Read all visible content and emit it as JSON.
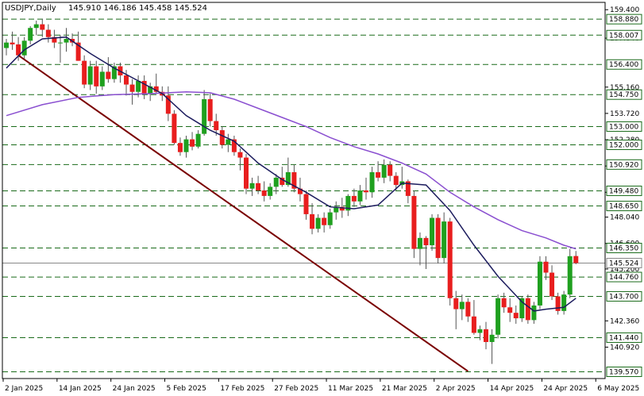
{
  "header": {
    "symbol": "USDJPY,Daily",
    "ohlc": "145.910 146.186 145.458 145.524"
  },
  "colors": {
    "background": "#ffffff",
    "bull": "#1fa01f",
    "bear": "#e81e1e",
    "wick": "#555555",
    "ma_fast": "#1c1c5e",
    "ma_slow": "#8a4fd0",
    "trendline": "#7a0000",
    "levels": "#1a6b1a",
    "price_line": "#888888",
    "grid_border": "#000000"
  },
  "chart_data": {
    "type": "candlestick",
    "timeframe": "Daily",
    "symbol": "USDJPY",
    "ylim": [
      139.2,
      159.8
    ],
    "price_ticks": [
      159.4,
      157.84,
      155.16,
      153.72,
      152.28,
      150.84,
      149.4,
      148.04,
      146.6,
      145.2,
      142.36,
      140.92
    ],
    "x_tick_labels": [
      "2 Jan 2025",
      "14 Jan 2025",
      "24 Jan 2025",
      "5 Feb 2025",
      "17 Feb 2025",
      "27 Feb 2025",
      "11 Mar 2025",
      "21 Mar 2025",
      "2 Apr 2025",
      "14 Apr 2025",
      "24 Apr 2025",
      "6 May 2025"
    ],
    "horizontal_levels": [
      158.88,
      158.007,
      156.4,
      154.75,
      153.0,
      152.0,
      150.92,
      149.48,
      148.65,
      146.35,
      144.76,
      143.7,
      141.44,
      139.57
    ],
    "current_price": 145.524,
    "candles": [
      [
        157.3,
        157.8,
        156.9,
        157.6
      ],
      [
        157.6,
        158.2,
        157.2,
        157.5
      ],
      [
        157.5,
        157.9,
        156.6,
        156.9
      ],
      [
        156.9,
        157.9,
        156.7,
        157.7
      ],
      [
        157.7,
        158.5,
        157.5,
        158.4
      ],
      [
        158.4,
        158.8,
        158.0,
        158.6
      ],
      [
        158.6,
        158.9,
        157.9,
        158.3
      ],
      [
        158.3,
        158.6,
        157.6,
        157.9
      ],
      [
        157.9,
        158.3,
        157.3,
        157.6
      ],
      [
        157.6,
        158.0,
        156.5,
        157.6
      ],
      [
        157.6,
        158.4,
        157.1,
        157.8
      ],
      [
        157.8,
        158.1,
        157.4,
        157.6
      ],
      [
        157.6,
        158.2,
        156.6,
        156.6
      ],
      [
        156.6,
        156.9,
        155.1,
        155.3
      ],
      [
        155.3,
        156.6,
        155.0,
        156.3
      ],
      [
        156.3,
        156.6,
        154.8,
        155.2
      ],
      [
        155.2,
        156.3,
        155.0,
        156.0
      ],
      [
        156.0,
        156.8,
        155.4,
        155.6
      ],
      [
        155.6,
        156.5,
        155.4,
        156.3
      ],
      [
        156.3,
        156.5,
        155.4,
        155.8
      ],
      [
        155.8,
        156.1,
        154.7,
        155.3
      ],
      [
        155.3,
        155.6,
        154.2,
        154.9
      ],
      [
        154.9,
        155.8,
        154.6,
        155.5
      ],
      [
        155.5,
        155.8,
        154.5,
        154.8
      ],
      [
        154.8,
        155.4,
        154.4,
        155.2
      ],
      [
        155.2,
        155.9,
        154.8,
        154.9
      ],
      [
        154.9,
        155.2,
        154.4,
        154.7
      ],
      [
        154.7,
        155.2,
        153.3,
        153.7
      ],
      [
        153.7,
        153.9,
        152.0,
        152.1
      ],
      [
        152.1,
        152.4,
        151.4,
        151.6
      ],
      [
        151.6,
        152.5,
        151.3,
        152.3
      ],
      [
        152.3,
        152.7,
        151.7,
        151.9
      ],
      [
        151.9,
        152.8,
        151.8,
        152.6
      ],
      [
        152.6,
        155.0,
        152.5,
        154.5
      ],
      [
        154.5,
        154.8,
        153.0,
        153.3
      ],
      [
        153.3,
        153.7,
        152.5,
        152.8
      ],
      [
        152.8,
        153.0,
        151.8,
        152.0
      ],
      [
        152.0,
        152.6,
        151.6,
        152.3
      ],
      [
        152.3,
        152.5,
        151.4,
        151.6
      ],
      [
        151.6,
        151.8,
        150.6,
        151.3
      ],
      [
        151.3,
        151.5,
        149.3,
        149.6
      ],
      [
        149.6,
        150.2,
        149.2,
        149.9
      ],
      [
        149.9,
        150.3,
        149.3,
        149.5
      ],
      [
        149.5,
        150.0,
        148.9,
        149.2
      ],
      [
        149.2,
        149.9,
        149.0,
        149.7
      ],
      [
        149.7,
        150.4,
        149.3,
        150.2
      ],
      [
        150.2,
        150.8,
        149.7,
        149.8
      ],
      [
        149.8,
        151.3,
        149.7,
        150.5
      ],
      [
        150.5,
        150.9,
        149.4,
        149.6
      ],
      [
        149.6,
        150.2,
        148.9,
        149.3
      ],
      [
        149.3,
        149.5,
        147.9,
        148.2
      ],
      [
        148.2,
        148.8,
        147.1,
        147.4
      ],
      [
        147.4,
        148.2,
        147.2,
        148.0
      ],
      [
        148.0,
        148.3,
        147.2,
        147.6
      ],
      [
        147.6,
        148.5,
        147.4,
        148.3
      ],
      [
        148.3,
        148.9,
        147.9,
        148.6
      ],
      [
        148.6,
        149.1,
        148.0,
        148.4
      ],
      [
        148.4,
        149.3,
        148.1,
        149.2
      ],
      [
        149.2,
        149.6,
        148.6,
        148.9
      ],
      [
        148.9,
        149.8,
        148.7,
        149.5
      ],
      [
        149.5,
        150.2,
        149.0,
        149.4
      ],
      [
        149.4,
        150.8,
        149.1,
        150.5
      ],
      [
        150.5,
        151.1,
        150.0,
        150.2
      ],
      [
        150.2,
        151.2,
        149.9,
        150.9
      ],
      [
        150.9,
        151.1,
        150.0,
        150.3
      ],
      [
        150.3,
        150.5,
        149.5,
        149.8
      ],
      [
        149.8,
        150.8,
        149.6,
        150.0
      ],
      [
        150.0,
        150.1,
        148.8,
        149.2
      ],
      [
        149.2,
        149.5,
        145.8,
        146.3
      ],
      [
        146.3,
        147.2,
        145.4,
        146.9
      ],
      [
        146.9,
        147.0,
        145.2,
        146.5
      ],
      [
        146.5,
        148.2,
        146.2,
        148.0
      ],
      [
        148.0,
        148.2,
        145.5,
        145.8
      ],
      [
        145.8,
        148.3,
        145.5,
        147.8
      ],
      [
        147.8,
        148.0,
        143.2,
        143.6
      ],
      [
        143.6,
        144.0,
        141.9,
        143.0
      ],
      [
        143.0,
        143.8,
        142.4,
        143.4
      ],
      [
        143.4,
        143.6,
        142.3,
        142.6
      ],
      [
        142.6,
        143.5,
        141.6,
        141.7
      ],
      [
        141.7,
        142.1,
        141.3,
        141.9
      ],
      [
        141.9,
        142.3,
        140.8,
        141.2
      ],
      [
        141.2,
        141.9,
        140.0,
        141.6
      ],
      [
        141.6,
        143.8,
        141.4,
        143.6
      ],
      [
        143.6,
        143.9,
        142.8,
        143.1
      ],
      [
        143.1,
        143.6,
        142.3,
        142.8
      ],
      [
        142.8,
        143.2,
        142.2,
        142.5
      ],
      [
        142.5,
        143.7,
        142.3,
        143.6
      ],
      [
        143.6,
        143.8,
        142.2,
        142.4
      ],
      [
        142.4,
        143.4,
        142.2,
        143.2
      ],
      [
        143.2,
        145.9,
        143.0,
        145.6
      ],
      [
        145.6,
        145.9,
        144.6,
        145.0
      ],
      [
        145.0,
        145.4,
        143.5,
        143.7
      ],
      [
        143.7,
        143.9,
        142.7,
        142.9
      ],
      [
        142.9,
        144.0,
        142.7,
        143.8
      ],
      [
        143.8,
        146.3,
        143.6,
        145.9
      ],
      [
        145.91,
        146.186,
        145.458,
        145.524
      ]
    ],
    "ma_fast": [
      [
        0,
        156.2
      ],
      [
        3,
        157.2
      ],
      [
        6,
        157.8
      ],
      [
        10,
        157.9
      ],
      [
        14,
        157.0
      ],
      [
        18,
        156.2
      ],
      [
        22,
        155.5
      ],
      [
        26,
        154.8
      ],
      [
        30,
        153.6
      ],
      [
        34,
        152.8
      ],
      [
        38,
        152.2
      ],
      [
        42,
        151.0
      ],
      [
        46,
        150.1
      ],
      [
        50,
        149.4
      ],
      [
        54,
        148.6
      ],
      [
        58,
        148.5
      ],
      [
        62,
        148.7
      ],
      [
        66,
        149.9
      ],
      [
        70,
        149.8
      ],
      [
        74,
        148.4
      ],
      [
        78,
        146.5
      ],
      [
        82,
        144.8
      ],
      [
        86,
        143.4
      ],
      [
        88,
        142.9
      ],
      [
        90,
        143.0
      ],
      [
        93,
        143.1
      ],
      [
        95,
        143.6
      ]
    ],
    "ma_slow": [
      [
        0,
        153.6
      ],
      [
        6,
        154.2
      ],
      [
        12,
        154.6
      ],
      [
        18,
        154.75
      ],
      [
        24,
        154.8
      ],
      [
        30,
        154.9
      ],
      [
        34,
        154.85
      ],
      [
        38,
        154.5
      ],
      [
        42,
        154.0
      ],
      [
        46,
        153.5
      ],
      [
        50,
        153.0
      ],
      [
        54,
        152.4
      ],
      [
        58,
        151.9
      ],
      [
        62,
        151.5
      ],
      [
        66,
        151.0
      ],
      [
        70,
        150.4
      ],
      [
        74,
        149.4
      ],
      [
        78,
        148.6
      ],
      [
        82,
        147.9
      ],
      [
        86,
        147.3
      ],
      [
        90,
        146.9
      ],
      [
        93,
        146.5
      ],
      [
        95,
        146.3
      ]
    ],
    "trendline": {
      "from": [
        2,
        156.9
      ],
      "to": [
        77,
        139.6
      ]
    }
  }
}
